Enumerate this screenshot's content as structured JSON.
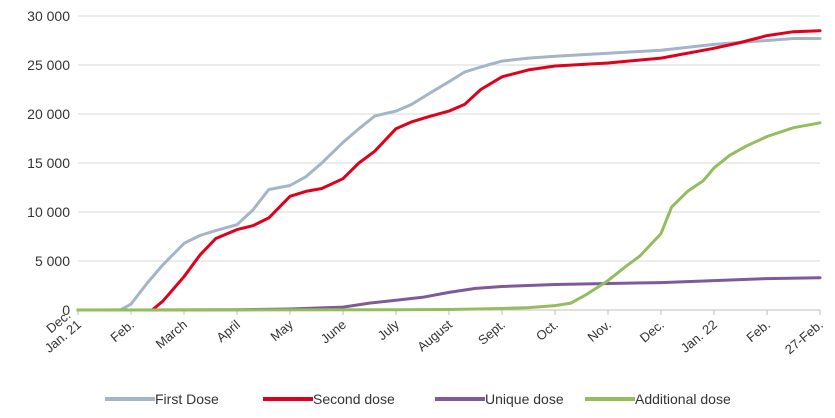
{
  "chart_data": {
    "type": "line",
    "title": "",
    "xlabel": "",
    "ylabel": "",
    "ylim": [
      0,
      30000
    ],
    "yticks": [
      0,
      5000,
      10000,
      15000,
      20000,
      25000,
      30000
    ],
    "ytick_labels": [
      "0",
      "5 000",
      "10 000",
      "15 000",
      "20 000",
      "25 000",
      "30 000"
    ],
    "x_tick_labels": [
      [
        "Dec.",
        "Jan. 21"
      ],
      [
        "Feb."
      ],
      [
        "March"
      ],
      [
        "April"
      ],
      [
        "May"
      ],
      [
        "June"
      ],
      [
        "July"
      ],
      [
        "August"
      ],
      [
        "Sept."
      ],
      [
        "Oct."
      ],
      [
        "Nov."
      ],
      [
        "Dec."
      ],
      [
        "Jan. 22"
      ],
      [
        "Feb."
      ],
      [
        "27-Feb."
      ]
    ],
    "x": [
      "Dec. 2020",
      "Jan. 2021",
      "Feb. 2021",
      "Mar. 2021",
      "Apr. 2021",
      "May 2021",
      "Jun. 2021",
      "Jul. 2021",
      "Aug. 2021",
      "Sep. 2021",
      "Oct. 2021",
      "Nov. 2021",
      "Dec. 2021",
      "Jan. 2022",
      "Feb. 2022",
      "27-Feb. 2022"
    ],
    "grid": true,
    "legend_position": "bottom",
    "series": [
      {
        "name": "First Dose",
        "color": "#a4b5c7",
        "points": [
          [
            0,
            0
          ],
          [
            0.8,
            0
          ],
          [
            1.0,
            600
          ],
          [
            1.3,
            2700
          ],
          [
            1.6,
            4600
          ],
          [
            2.0,
            6800
          ],
          [
            2.3,
            7600
          ],
          [
            2.6,
            8100
          ],
          [
            3.0,
            8700
          ],
          [
            3.3,
            10200
          ],
          [
            3.6,
            12300
          ],
          [
            4.0,
            12700
          ],
          [
            4.3,
            13600
          ],
          [
            4.6,
            15000
          ],
          [
            5.0,
            17100
          ],
          [
            5.3,
            18500
          ],
          [
            5.6,
            19800
          ],
          [
            6.0,
            20300
          ],
          [
            6.3,
            21000
          ],
          [
            6.6,
            22000
          ],
          [
            7.0,
            23300
          ],
          [
            7.3,
            24300
          ],
          [
            7.6,
            24800
          ],
          [
            8.0,
            25400
          ],
          [
            8.5,
            25700
          ],
          [
            9.0,
            25900
          ],
          [
            10.0,
            26200
          ],
          [
            11.0,
            26500
          ],
          [
            12.0,
            27100
          ],
          [
            13.0,
            27500
          ],
          [
            13.5,
            27700
          ],
          [
            14.0,
            27700
          ]
        ]
      },
      {
        "name": "Second dose",
        "color": "#e0001b",
        "points": [
          [
            0,
            0
          ],
          [
            1.4,
            0
          ],
          [
            1.6,
            900
          ],
          [
            2.0,
            3400
          ],
          [
            2.3,
            5600
          ],
          [
            2.6,
            7300
          ],
          [
            3.0,
            8200
          ],
          [
            3.3,
            8600
          ],
          [
            3.6,
            9400
          ],
          [
            4.0,
            11600
          ],
          [
            4.3,
            12100
          ],
          [
            4.6,
            12400
          ],
          [
            5.0,
            13400
          ],
          [
            5.3,
            15000
          ],
          [
            5.6,
            16200
          ],
          [
            6.0,
            18500
          ],
          [
            6.3,
            19200
          ],
          [
            6.6,
            19700
          ],
          [
            7.0,
            20300
          ],
          [
            7.3,
            21000
          ],
          [
            7.6,
            22500
          ],
          [
            8.0,
            23800
          ],
          [
            8.5,
            24500
          ],
          [
            9.0,
            24900
          ],
          [
            10.0,
            25200
          ],
          [
            11.0,
            25700
          ],
          [
            12.0,
            26700
          ],
          [
            12.5,
            27300
          ],
          [
            13.0,
            28000
          ],
          [
            13.5,
            28400
          ],
          [
            14.0,
            28500
          ]
        ]
      },
      {
        "name": "Unique dose",
        "color": "#7e5a9b",
        "points": [
          [
            0,
            0
          ],
          [
            3.0,
            20
          ],
          [
            4.0,
            100
          ],
          [
            5.0,
            300
          ],
          [
            5.5,
            700
          ],
          [
            6.0,
            1000
          ],
          [
            6.5,
            1300
          ],
          [
            7.0,
            1800
          ],
          [
            7.5,
            2200
          ],
          [
            8.0,
            2400
          ],
          [
            9.0,
            2600
          ],
          [
            10.0,
            2700
          ],
          [
            11.0,
            2800
          ],
          [
            12.0,
            3000
          ],
          [
            13.0,
            3200
          ],
          [
            14.0,
            3300
          ]
        ]
      },
      {
        "name": "Additional dose",
        "color": "#94bd5e",
        "points": [
          [
            0,
            0
          ],
          [
            6.0,
            20
          ],
          [
            7.0,
            50
          ],
          [
            8.0,
            150
          ],
          [
            8.5,
            250
          ],
          [
            9.0,
            450
          ],
          [
            9.3,
            700
          ],
          [
            9.6,
            1600
          ],
          [
            10.0,
            3000
          ],
          [
            10.3,
            4300
          ],
          [
            10.6,
            5500
          ],
          [
            11.0,
            7800
          ],
          [
            11.2,
            10500
          ],
          [
            11.5,
            12100
          ],
          [
            11.8,
            13200
          ],
          [
            12.0,
            14500
          ],
          [
            12.3,
            15800
          ],
          [
            12.6,
            16700
          ],
          [
            13.0,
            17700
          ],
          [
            13.5,
            18600
          ],
          [
            14.0,
            19100
          ]
        ]
      }
    ]
  }
}
